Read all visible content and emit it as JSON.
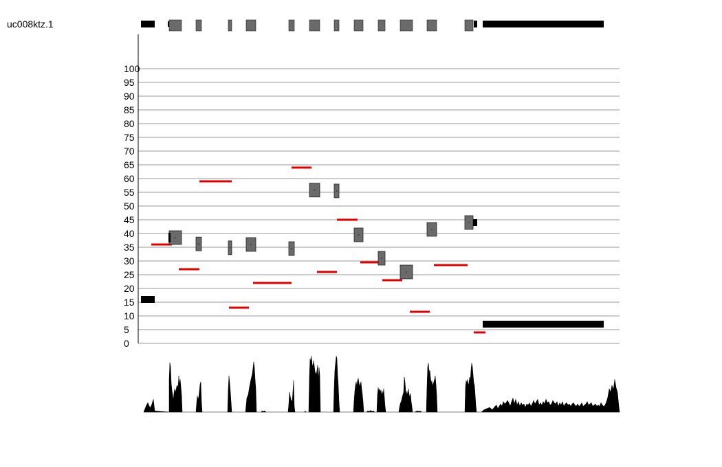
{
  "chart_data": {
    "type": "scatter",
    "title": "uc008ktz.1",
    "xlabel": "",
    "ylabel": "",
    "ylim": [
      0,
      100
    ],
    "yticks": [
      0,
      5,
      10,
      15,
      20,
      25,
      30,
      35,
      40,
      45,
      50,
      55,
      60,
      65,
      70,
      75,
      80,
      85,
      90,
      95,
      100
    ],
    "grid": true,
    "colors": {
      "exon": "#6a6a6a",
      "utr": "#000000",
      "intron_mean": "#e00000",
      "coverage": "#000000",
      "grid": "#999999"
    },
    "gene_model": {
      "utr_5prime": [
        205,
        225
      ],
      "exons": [
        [
          246,
          264
        ],
        [
          285,
          293
        ],
        [
          332,
          337
        ],
        [
          358,
          372
        ],
        [
          420,
          428
        ],
        [
          450,
          465
        ],
        [
          486,
          493
        ],
        [
          515,
          528
        ],
        [
          550,
          560
        ],
        [
          582,
          600
        ],
        [
          621,
          635
        ],
        [
          676,
          688
        ]
      ],
      "utr_3prime": [
        702,
        878
      ],
      "utr_tail": [
        689,
        694
      ]
    },
    "exon_values": [
      {
        "x": [
          246,
          264
        ],
        "y": 38.5,
        "h": 5
      },
      {
        "x": [
          285,
          293
        ],
        "y": 36.2,
        "h": 5
      },
      {
        "x": [
          332,
          337
        ],
        "y": 34.8,
        "h": 5
      },
      {
        "x": [
          358,
          372
        ],
        "y": 36.0,
        "h": 5
      },
      {
        "x": [
          420,
          428
        ],
        "y": 34.5,
        "h": 5
      },
      {
        "x": [
          450,
          465
        ],
        "y": 55.8,
        "h": 5
      },
      {
        "x": [
          486,
          493
        ],
        "y": 55.5,
        "h": 5
      },
      {
        "x": [
          515,
          528
        ],
        "y": 39.5,
        "h": 5
      },
      {
        "x": [
          550,
          560
        ],
        "y": 31.0,
        "h": 5
      },
      {
        "x": [
          582,
          600
        ],
        "y": 26.0,
        "h": 5
      },
      {
        "x": [
          621,
          635
        ],
        "y": 41.5,
        "h": 5
      },
      {
        "x": [
          676,
          688
        ],
        "y": 44.0,
        "h": 5
      }
    ],
    "utr_values": [
      {
        "x": [
          205,
          225
        ],
        "y": 16.0,
        "h": 2.5
      },
      {
        "x": [
          245,
          248
        ],
        "y": 38.5,
        "h": 3.5
      },
      {
        "x": [
          688,
          694
        ],
        "y": 44.0,
        "h": 2.5
      },
      {
        "x": [
          702,
          878
        ],
        "y": 7.0,
        "h": 2.5
      }
    ],
    "intron_values": [
      {
        "x": [
          220,
          250
        ],
        "y": 36
      },
      {
        "x": [
          260,
          290
        ],
        "y": 27
      },
      {
        "x": [
          290,
          337
        ],
        "y": 59
      },
      {
        "x": [
          333,
          362
        ],
        "y": 13
      },
      {
        "x": [
          368,
          424
        ],
        "y": 22
      },
      {
        "x": [
          424,
          453
        ],
        "y": 64
      },
      {
        "x": [
          461,
          490
        ],
        "y": 26
      },
      {
        "x": [
          490,
          520
        ],
        "y": 45
      },
      {
        "x": [
          524,
          553
        ],
        "y": 29.5
      },
      {
        "x": [
          556,
          585
        ],
        "y": 23
      },
      {
        "x": [
          596,
          625
        ],
        "y": 11.5
      },
      {
        "x": [
          631,
          680
        ],
        "y": 28.5
      },
      {
        "x": [
          689,
          706
        ],
        "y": 4
      }
    ],
    "coverage": [
      [
        209,
        0
      ],
      [
        211,
        6
      ],
      [
        213,
        12
      ],
      [
        215,
        16
      ],
      [
        217,
        10
      ],
      [
        219,
        8
      ],
      [
        221,
        14
      ],
      [
        223,
        22
      ],
      [
        225,
        2
      ],
      [
        245,
        0
      ],
      [
        246,
        55
      ],
      [
        247,
        85
      ],
      [
        248,
        78
      ],
      [
        249,
        50
      ],
      [
        250,
        38
      ],
      [
        251,
        30
      ],
      [
        252,
        20
      ],
      [
        253,
        32
      ],
      [
        254,
        40
      ],
      [
        255,
        34
      ],
      [
        256,
        38
      ],
      [
        257,
        44
      ],
      [
        258,
        46
      ],
      [
        259,
        42
      ],
      [
        260,
        62
      ],
      [
        261,
        48
      ],
      [
        262,
        56
      ],
      [
        263,
        44
      ],
      [
        264,
        30
      ],
      [
        265,
        0
      ],
      [
        285,
        0
      ],
      [
        286,
        16
      ],
      [
        287,
        28
      ],
      [
        288,
        22
      ],
      [
        289,
        26
      ],
      [
        290,
        36
      ],
      [
        291,
        48
      ],
      [
        292,
        52
      ],
      [
        293,
        18
      ],
      [
        294,
        0
      ],
      [
        331,
        0
      ],
      [
        332,
        40
      ],
      [
        333,
        62
      ],
      [
        334,
        50
      ],
      [
        335,
        36
      ],
      [
        336,
        18
      ],
      [
        337,
        0
      ],
      [
        357,
        0
      ],
      [
        358,
        12
      ],
      [
        359,
        24
      ],
      [
        361,
        30
      ],
      [
        363,
        44
      ],
      [
        365,
        56
      ],
      [
        367,
        66
      ],
      [
        369,
        86
      ],
      [
        370,
        76
      ],
      [
        371,
        56
      ],
      [
        372,
        40
      ],
      [
        373,
        0
      ],
      [
        380,
        0
      ],
      [
        381,
        2
      ],
      [
        383,
        1
      ],
      [
        385,
        2
      ],
      [
        387,
        0
      ],
      [
        419,
        0
      ],
      [
        420,
        14
      ],
      [
        421,
        34
      ],
      [
        422,
        28
      ],
      [
        423,
        22
      ],
      [
        425,
        18
      ],
      [
        427,
        54
      ],
      [
        428,
        10
      ],
      [
        429,
        0
      ],
      [
        443,
        0
      ],
      [
        444,
        2
      ],
      [
        445,
        0
      ],
      [
        449,
        0
      ],
      [
        450,
        62
      ],
      [
        451,
        92
      ],
      [
        452,
        86
      ],
      [
        453,
        96
      ],
      [
        454,
        82
      ],
      [
        455,
        78
      ],
      [
        456,
        88
      ],
      [
        457,
        80
      ],
      [
        458,
        70
      ],
      [
        460,
        64
      ],
      [
        461,
        72
      ],
      [
        462,
        80
      ],
      [
        463,
        54
      ],
      [
        464,
        76
      ],
      [
        465,
        64
      ],
      [
        466,
        0
      ],
      [
        485,
        0
      ],
      [
        486,
        42
      ],
      [
        487,
        72
      ],
      [
        488,
        84
      ],
      [
        489,
        96
      ],
      [
        490,
        92
      ],
      [
        491,
        64
      ],
      [
        492,
        46
      ],
      [
        493,
        18
      ],
      [
        494,
        0
      ],
      [
        514,
        0
      ],
      [
        515,
        20
      ],
      [
        516,
        36
      ],
      [
        517,
        46
      ],
      [
        518,
        52
      ],
      [
        519,
        44
      ],
      [
        520,
        54
      ],
      [
        521,
        58
      ],
      [
        522,
        50
      ],
      [
        523,
        44
      ],
      [
        524,
        48
      ],
      [
        525,
        52
      ],
      [
        526,
        40
      ],
      [
        527,
        30
      ],
      [
        528,
        18
      ],
      [
        529,
        0
      ],
      [
        533,
        0
      ],
      [
        535,
        2
      ],
      [
        537,
        1
      ],
      [
        539,
        3
      ],
      [
        541,
        1
      ],
      [
        543,
        2
      ],
      [
        545,
        0
      ],
      [
        548,
        0
      ],
      [
        549,
        30
      ],
      [
        550,
        42
      ],
      [
        551,
        36
      ],
      [
        552,
        40
      ],
      [
        553,
        34
      ],
      [
        554,
        38
      ],
      [
        555,
        28
      ],
      [
        556,
        36
      ],
      [
        557,
        30
      ],
      [
        558,
        40
      ],
      [
        559,
        26
      ],
      [
        560,
        10
      ],
      [
        561,
        0
      ],
      [
        580,
        0
      ],
      [
        581,
        8
      ],
      [
        582,
        14
      ],
      [
        584,
        20
      ],
      [
        585,
        26
      ],
      [
        586,
        30
      ],
      [
        587,
        34
      ],
      [
        588,
        60
      ],
      [
        589,
        52
      ],
      [
        590,
        36
      ],
      [
        591,
        30
      ],
      [
        592,
        36
      ],
      [
        593,
        28
      ],
      [
        594,
        40
      ],
      [
        595,
        30
      ],
      [
        596,
        26
      ],
      [
        597,
        32
      ],
      [
        598,
        18
      ],
      [
        599,
        10
      ],
      [
        600,
        0
      ],
      [
        603,
        0
      ],
      [
        605,
        1
      ],
      [
        607,
        2
      ],
      [
        609,
        1
      ],
      [
        611,
        2
      ],
      [
        613,
        0
      ],
      [
        620,
        0
      ],
      [
        621,
        44
      ],
      [
        622,
        78
      ],
      [
        623,
        84
      ],
      [
        624,
        68
      ],
      [
        625,
        72
      ],
      [
        626,
        60
      ],
      [
        627,
        50
      ],
      [
        628,
        54
      ],
      [
        629,
        46
      ],
      [
        630,
        48
      ],
      [
        631,
        52
      ],
      [
        632,
        56
      ],
      [
        633,
        62
      ],
      [
        634,
        48
      ],
      [
        635,
        30
      ],
      [
        636,
        0
      ],
      [
        676,
        0
      ],
      [
        677,
        44
      ],
      [
        678,
        54
      ],
      [
        679,
        50
      ],
      [
        680,
        56
      ],
      [
        681,
        46
      ],
      [
        682,
        50
      ],
      [
        683,
        60
      ],
      [
        684,
        54
      ],
      [
        685,
        72
      ],
      [
        686,
        84
      ],
      [
        687,
        78
      ],
      [
        688,
        64
      ],
      [
        689,
        50
      ],
      [
        690,
        46
      ],
      [
        691,
        30
      ],
      [
        692,
        12
      ],
      [
        693,
        0
      ],
      [
        700,
        0
      ],
      [
        704,
        4
      ],
      [
        708,
        6
      ],
      [
        712,
        8
      ],
      [
        716,
        4
      ],
      [
        720,
        10
      ],
      [
        722,
        12
      ],
      [
        724,
        6
      ],
      [
        728,
        14
      ],
      [
        730,
        10
      ],
      [
        732,
        18
      ],
      [
        734,
        14
      ],
      [
        736,
        16
      ],
      [
        738,
        20
      ],
      [
        740,
        16
      ],
      [
        742,
        10
      ],
      [
        744,
        18
      ],
      [
        746,
        24
      ],
      [
        748,
        14
      ],
      [
        750,
        22
      ],
      [
        752,
        12
      ],
      [
        754,
        18
      ],
      [
        756,
        10
      ],
      [
        758,
        16
      ],
      [
        760,
        12
      ],
      [
        762,
        14
      ],
      [
        764,
        8
      ],
      [
        766,
        14
      ],
      [
        768,
        12
      ],
      [
        770,
        16
      ],
      [
        772,
        10
      ],
      [
        774,
        14
      ],
      [
        776,
        20
      ],
      [
        778,
        14
      ],
      [
        780,
        18
      ],
      [
        782,
        22
      ],
      [
        784,
        12
      ],
      [
        786,
        16
      ],
      [
        788,
        12
      ],
      [
        790,
        18
      ],
      [
        792,
        14
      ],
      [
        794,
        22
      ],
      [
        796,
        16
      ],
      [
        798,
        18
      ],
      [
        800,
        12
      ],
      [
        802,
        14
      ],
      [
        804,
        20
      ],
      [
        806,
        16
      ],
      [
        808,
        14
      ],
      [
        810,
        18
      ],
      [
        812,
        10
      ],
      [
        814,
        16
      ],
      [
        816,
        12
      ],
      [
        818,
        18
      ],
      [
        820,
        10
      ],
      [
        822,
        14
      ],
      [
        824,
        16
      ],
      [
        826,
        12
      ],
      [
        828,
        14
      ],
      [
        830,
        10
      ],
      [
        832,
        14
      ],
      [
        834,
        16
      ],
      [
        836,
        12
      ],
      [
        838,
        10
      ],
      [
        840,
        14
      ],
      [
        842,
        10
      ],
      [
        844,
        12
      ],
      [
        846,
        16
      ],
      [
        848,
        10
      ],
      [
        850,
        12
      ],
      [
        852,
        14
      ],
      [
        854,
        18
      ],
      [
        856,
        12
      ],
      [
        858,
        14
      ],
      [
        860,
        16
      ],
      [
        862,
        10
      ],
      [
        864,
        12
      ],
      [
        866,
        14
      ],
      [
        868,
        10
      ],
      [
        870,
        12
      ],
      [
        872,
        10
      ],
      [
        874,
        16
      ],
      [
        876,
        12
      ],
      [
        878,
        10
      ],
      [
        880,
        12
      ],
      [
        882,
        18
      ],
      [
        884,
        26
      ],
      [
        886,
        40
      ],
      [
        888,
        34
      ],
      [
        890,
        46
      ],
      [
        892,
        38
      ],
      [
        894,
        56
      ],
      [
        896,
        42
      ],
      [
        898,
        34
      ],
      [
        899,
        22
      ],
      [
        900,
        10
      ],
      [
        901,
        0
      ]
    ]
  }
}
